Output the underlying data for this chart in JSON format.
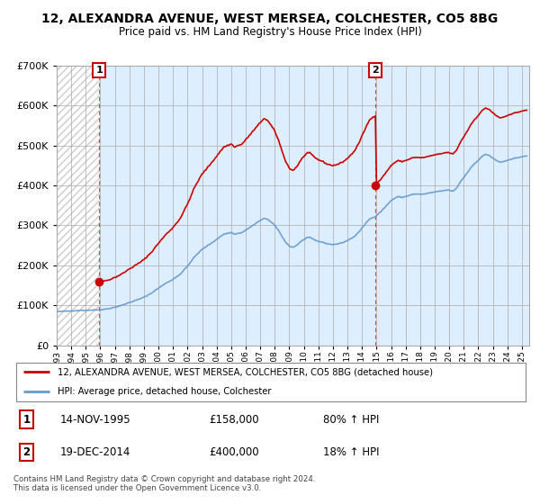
{
  "title": "12, ALEXANDRA AVENUE, WEST MERSEA, COLCHESTER, CO5 8BG",
  "subtitle": "Price paid vs. HM Land Registry's House Price Index (HPI)",
  "sale1_x": 1995.917,
  "sale1_price": 158000,
  "sale2_x": 2014.917,
  "sale2_price": 400000,
  "ylim": [
    0,
    700000
  ],
  "xlim_start": 1993.0,
  "xlim_end": 2025.5,
  "legend_line1": "12, ALEXANDRA AVENUE, WEST MERSEA, COLCHESTER, CO5 8BG (detached house)",
  "legend_line2": "HPI: Average price, detached house, Colchester",
  "footnote": "Contains HM Land Registry data © Crown copyright and database right 2024.\nThis data is licensed under the Open Government Licence v3.0.",
  "property_color": "#cc0000",
  "hpi_color": "#6699cc",
  "hpi_fill_color": "#ddeeff"
}
